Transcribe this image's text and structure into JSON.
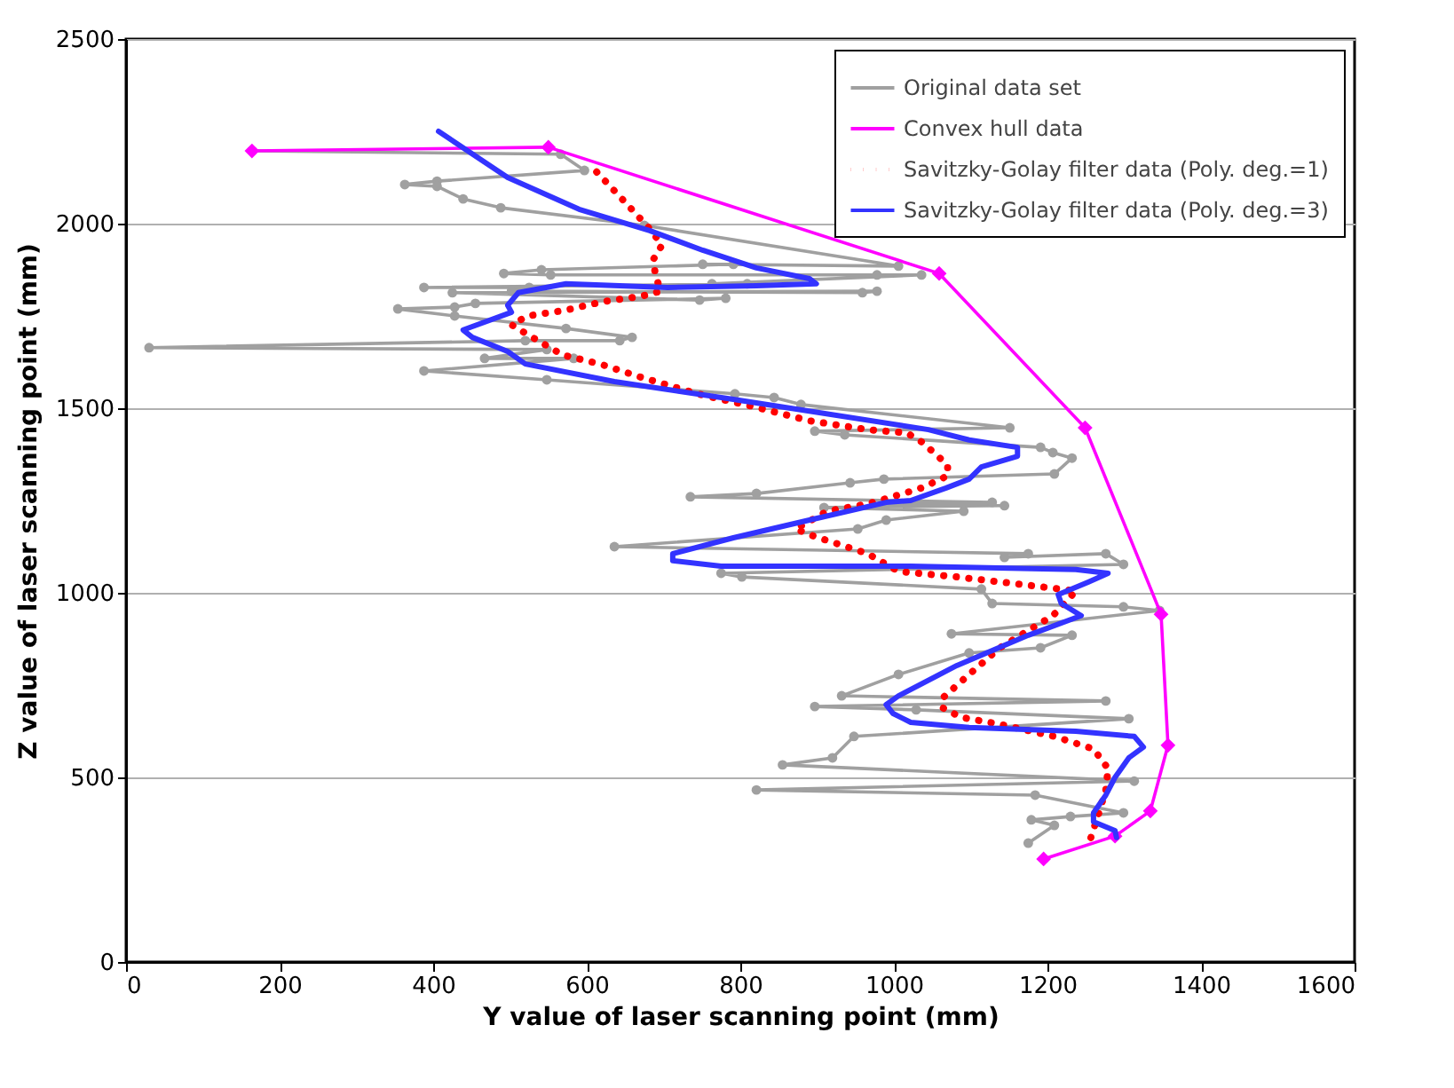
{
  "chart_data": {
    "type": "line",
    "xlabel": "Y value of laser scanning point (mm)",
    "ylabel": "Z value of laser scanning point (mm)",
    "xlim": [
      0,
      1600
    ],
    "xticks": [
      0,
      200,
      400,
      600,
      800,
      1000,
      1200,
      1400,
      1600
    ],
    "ylim": [
      0,
      2500
    ],
    "yticks": [
      0,
      500,
      1000,
      1500,
      2000,
      2500
    ],
    "grid": "y",
    "legend": "top right",
    "series": [
      {
        "name": "Original data set",
        "color": "#a0a0a0",
        "marker": "circle",
        "line_style": "solid",
        "x": [
          164,
          566,
          597,
          405,
          363,
          405,
          439,
          488,
          675,
          1006,
          751,
          791,
          541,
          492,
          553,
          978,
          1036,
          763,
          809,
          388,
          525,
          502,
          959,
          978,
          425,
          747,
          781,
          455,
          428,
          354,
          428,
          573,
          659,
          643,
          520,
          30,
          548,
          467,
          583,
          388,
          548,
          793,
          844,
          879,
          1151,
          897,
          936,
          1191,
          1207,
          1232,
          1209,
          987,
          943,
          821,
          735,
          1128,
          990,
          1144,
          909,
          1091,
          990,
          953,
          636,
          1175,
          1144,
          1276,
          1299,
          775,
          802,
          1114,
          1128,
          1299,
          1346,
          1075,
          1232,
          1191,
          1098,
          1006,
          932,
          1276,
          897,
          1029,
          1306,
          948,
          920,
          855,
          1313,
          821,
          1184,
          1299,
          1230,
          1179,
          1209,
          1175
        ],
        "values": [
          2197,
          2188,
          2144,
          2115,
          2106,
          2101,
          2067,
          2043,
          1995,
          1885,
          1890,
          1890,
          1875,
          1865,
          1861,
          1861,
          1861,
          1837,
          1837,
          1827,
          1827,
          1817,
          1813,
          1817,
          1813,
          1793,
          1798,
          1784,
          1774,
          1769,
          1750,
          1716,
          1692,
          1683,
          1683,
          1664,
          1659,
          1635,
          1635,
          1601,
          1577,
          1539,
          1529,
          1510,
          1447,
          1438,
          1428,
          1394,
          1380,
          1365,
          1322,
          1308,
          1298,
          1269,
          1260,
          1245,
          1240,
          1236,
          1231,
          1221,
          1197,
          1173,
          1125,
          1106,
          1096,
          1106,
          1077,
          1053,
          1043,
          1010,
          971,
          962,
          952,
          889,
          885,
          851,
          837,
          779,
          721,
          707,
          692,
          683,
          659,
          611,
          553,
          534,
          490,
          466,
          452,
          404,
          394,
          385,
          370,
          322
        ]
      },
      {
        "name": "Convex hull data",
        "color": "#ff00ff",
        "marker": "diamond",
        "line_style": "solid",
        "x": [
          164,
          550,
          1059,
          1249,
          1348,
          1357,
          1334,
          1288,
          1195
        ],
        "values": [
          2197,
          2207,
          1865,
          1447,
          942,
          587,
          409,
          341,
          279
        ]
      },
      {
        "name": "Savitzky-Golay filter data (Poly. deg.=1)",
        "color": "#ff0000",
        "marker": "none",
        "line_style": "dotted",
        "x": [
          613,
          650,
          682,
          698,
          687,
          689,
          696,
          670,
          622,
          571,
          523,
          502,
          525,
          569,
          617,
          666,
          744,
          816,
          890,
          966,
          1017,
          1036,
          1052,
          1070,
          1070,
          1036,
          990,
          964,
          913,
          872,
          895,
          966,
          1006,
          1082,
          1161,
          1237,
          1207,
          1168,
          1138,
          1098,
          1064,
          1064,
          1087,
          1138,
          1209,
          1260,
          1279,
          1276,
          1267,
          1255
        ],
        "values": [
          2140,
          2058,
          1986,
          1942,
          1904,
          1866,
          1817,
          1803,
          1789,
          1765,
          1750,
          1726,
          1697,
          1644,
          1620,
          1587,
          1539,
          1505,
          1466,
          1442,
          1433,
          1409,
          1380,
          1346,
          1317,
          1284,
          1255,
          1240,
          1221,
          1173,
          1154,
          1106,
          1058,
          1043,
          1024,
          1005,
          938,
          889,
          851,
          779,
          716,
          688,
          663,
          644,
          611,
          577,
          524,
          466,
          404,
          327
        ]
      },
      {
        "name": "Savitzky-Golay filter data (Poly. deg.=3)",
        "color": "#3333ff",
        "marker": "none",
        "line_style": "solid",
        "x": [
          407,
          497,
          590,
          682,
          751,
          821,
          890,
          899,
          821,
          705,
          573,
          511,
          497,
          502,
          439,
          451,
          497,
          520,
          636,
          791,
          1045,
          1098,
          1161,
          1161,
          1114,
          1098,
          1068,
          1022,
          990,
          890,
          791,
          712,
          712,
          775,
          1022,
          1237,
          1279,
          1253,
          1214,
          1218,
          1244,
          1175,
          1082,
          1006,
          990,
          999,
          1022,
          1098,
          1237,
          1313,
          1325,
          1306,
          1288,
          1276,
          1260,
          1260,
          1288,
          1290
        ],
        "values": [
          2250,
          2125,
          2039,
          1981,
          1928,
          1880,
          1851,
          1837,
          1832,
          1827,
          1837,
          1813,
          1779,
          1760,
          1712,
          1692,
          1654,
          1620,
          1572,
          1524,
          1442,
          1414,
          1394,
          1370,
          1341,
          1308,
          1284,
          1250,
          1245,
          1197,
          1149,
          1106,
          1087,
          1072,
          1072,
          1063,
          1053,
          1029,
          995,
          971,
          938,
          885,
          803,
          721,
          697,
          673,
          649,
          635,
          625,
          611,
          582,
          553,
          500,
          452,
          404,
          380,
          356,
          337
        ]
      }
    ]
  }
}
